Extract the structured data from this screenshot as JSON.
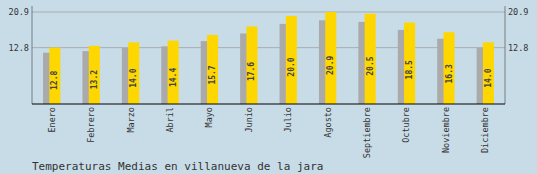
{
  "chart_data": {
    "type": "bar",
    "title": "Temperaturas Medias en villanueva de la jara",
    "categories": [
      "Enero",
      "Febrero",
      "Marzo",
      "Abril",
      "Mayo",
      "Junio",
      "Julio",
      "Agosto",
      "Septiembre",
      "Octubre",
      "Noviembre",
      "Diciembre"
    ],
    "series": [
      {
        "color": "#AAAAAA",
        "values": [
          11.648,
          12.012,
          12.74,
          13.104,
          14.287,
          16.016,
          18.2,
          19.019,
          18.655,
          16.835,
          14.833,
          12.74
        ]
      },
      {
        "color": "#FFD700",
        "values": [
          12.8,
          13.2,
          14.0,
          14.4,
          15.7,
          17.6,
          20.0,
          20.9,
          20.5,
          18.5,
          16.3,
          14.0
        ],
        "value_labels": [
          "12.8",
          "13.2",
          "14.0",
          "14.4",
          "15.7",
          "17.6",
          "20.0",
          "20.9",
          "20.5",
          "18.5",
          "16.3",
          "14.0"
        ],
        "data_labels": true
      }
    ],
    "ylim": [
      0,
      22.2585
    ],
    "yticks": [
      12.8,
      20.9
    ],
    "y2lim": [
      0,
      22.2585
    ],
    "y2ticks": [
      12.8,
      20.9
    ],
    "grid": true
  }
}
